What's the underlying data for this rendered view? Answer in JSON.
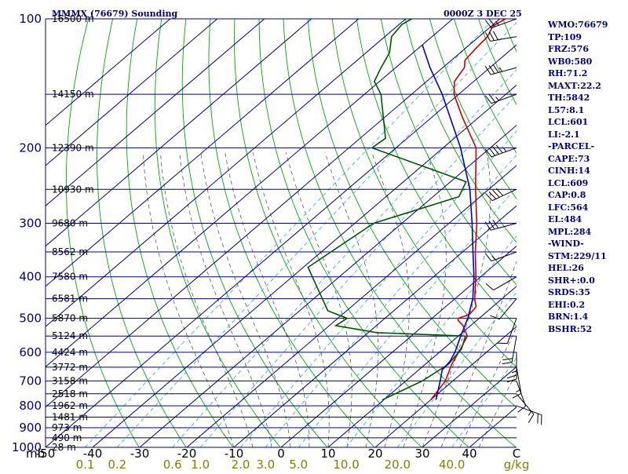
{
  "header": {
    "title": "MMMX (76679) Sounding",
    "time": "0000Z  3 DEC 25"
  },
  "colors": {
    "isobar": "#000080",
    "isotherm": "#000080",
    "dry_adiabat": "#00aa00",
    "moist_adiabat": "#444444",
    "mixing_ratio": "#44aadd",
    "temperature": "#cc0000",
    "dewpoint": "#005500",
    "parcel": "#0000cc",
    "wind": "#000000",
    "index_text": "#000080"
  },
  "chart_data": {
    "type": "line",
    "skew_t": true,
    "y_scale": "log-pressure",
    "pressure_range_mb": [
      1000,
      100
    ],
    "temp_range_c": [
      -50,
      50
    ],
    "pressure_label_unit": "mb",
    "pressure_labels": [
      100,
      200,
      300,
      400,
      500,
      600,
      700,
      800,
      900,
      1000
    ],
    "isobars": [
      100,
      150,
      200,
      250,
      300,
      350,
      400,
      450,
      500,
      550,
      600,
      650,
      700,
      750,
      800,
      850,
      900,
      950,
      1000
    ],
    "height_labels": [
      {
        "p": 100,
        "label": "16500 m"
      },
      {
        "p": 150,
        "label": "14150 m"
      },
      {
        "p": 200,
        "label": "12390 m"
      },
      {
        "p": 250,
        "label": "10930 m"
      },
      {
        "p": 300,
        "label": "9680 m"
      },
      {
        "p": 350,
        "label": "8562 m"
      },
      {
        "p": 400,
        "label": "7580 m"
      },
      {
        "p": 450,
        "label": "6581 m"
      },
      {
        "p": 500,
        "label": "5870 m"
      },
      {
        "p": 550,
        "label": "5124 m"
      },
      {
        "p": 600,
        "label": "4424 m"
      },
      {
        "p": 650,
        "label": "3772 m"
      },
      {
        "p": 700,
        "label": "3158 m"
      },
      {
        "p": 750,
        "label": "2518 m"
      },
      {
        "p": 800,
        "label": "1962 m"
      },
      {
        "p": 850,
        "label": "1481 m"
      },
      {
        "p": 900,
        "label": "973 m"
      },
      {
        "p": 950,
        "label": "490 m"
      },
      {
        "p": 1000,
        "label": "28 m"
      }
    ],
    "temp_ticks": [
      {
        "t": -50,
        "label": "-50"
      },
      {
        "t": -40,
        "label": "-40"
      },
      {
        "t": -30,
        "label": "-30"
      },
      {
        "t": -20,
        "label": "-20"
      },
      {
        "t": -10,
        "label": "-10"
      },
      {
        "t": 0,
        "label": "0"
      },
      {
        "t": 10,
        "label": "10"
      },
      {
        "t": 20,
        "label": "20"
      },
      {
        "t": 30,
        "label": "30"
      },
      {
        "t": 40,
        "label": "40"
      },
      {
        "t": 50,
        "label": "C"
      }
    ],
    "mixing_ratio_labels": [
      "0.1",
      "0.2",
      "0.6",
      "1.0",
      "2.0",
      "3.0",
      "5.0",
      "10.0",
      "20.0",
      "40.0",
      "g/kg"
    ],
    "temperature": [
      {
        "p": 775,
        "t": 20.0
      },
      {
        "p": 700,
        "t": 18.4
      },
      {
        "p": 640,
        "t": 15.6
      },
      {
        "p": 590,
        "t": 13.7
      },
      {
        "p": 550,
        "t": 11.9
      },
      {
        "p": 520,
        "t": 8.4
      },
      {
        "p": 505,
        "t": 6.0
      },
      {
        "p": 500,
        "t": 5.6
      },
      {
        "p": 490,
        "t": 7.0
      },
      {
        "p": 470,
        "t": 6.5
      },
      {
        "p": 450,
        "t": 4.2
      },
      {
        "p": 400,
        "t": -1.0
      },
      {
        "p": 350,
        "t": -7.3
      },
      {
        "p": 300,
        "t": -14.1
      },
      {
        "p": 250,
        "t": -22.8
      },
      {
        "p": 200,
        "t": -33.0
      },
      {
        "p": 170,
        "t": -43.4
      },
      {
        "p": 150,
        "t": -51.0
      },
      {
        "p": 140,
        "t": -54.1
      },
      {
        "p": 130,
        "t": -55.4
      },
      {
        "p": 125,
        "t": -57.1
      },
      {
        "p": 118,
        "t": -57.7
      },
      {
        "p": 110,
        "t": -58.2
      },
      {
        "p": 104,
        "t": -59.7
      },
      {
        "p": 100,
        "t": -58.8
      }
    ],
    "dewpoint": [
      {
        "p": 775,
        "t": 9.7
      },
      {
        "p": 700,
        "t": 13.5
      },
      {
        "p": 640,
        "t": 14.9
      },
      {
        "p": 590,
        "t": 13.9
      },
      {
        "p": 550,
        "t": 11.5
      },
      {
        "p": 540,
        "t": -8.1
      },
      {
        "p": 520,
        "t": -18.6
      },
      {
        "p": 500,
        "t": -18.0
      },
      {
        "p": 480,
        "t": -24.0
      },
      {
        "p": 380,
        "t": -39.0
      },
      {
        "p": 300,
        "t": -36.0
      },
      {
        "p": 260,
        "t": -24.5
      },
      {
        "p": 240,
        "t": -26.7
      },
      {
        "p": 200,
        "t": -55.1
      },
      {
        "p": 190,
        "t": -54.6
      },
      {
        "p": 150,
        "t": -66.5
      },
      {
        "p": 140,
        "t": -71.1
      },
      {
        "p": 130,
        "t": -73.1
      },
      {
        "p": 120,
        "t": -75.0
      },
      {
        "p": 110,
        "t": -78.6
      },
      {
        "p": 103,
        "t": -79.4
      },
      {
        "p": 100,
        "t": -78.7
      }
    ],
    "parcel": [
      {
        "p": 775,
        "t": 21.1
      },
      {
        "p": 700,
        "t": 17.3
      },
      {
        "p": 660,
        "t": 15.0
      },
      {
        "p": 630,
        "t": 14.5
      },
      {
        "p": 600,
        "t": 13.3
      },
      {
        "p": 550,
        "t": 10.5
      },
      {
        "p": 500,
        "t": 7.6
      },
      {
        "p": 450,
        "t": 3.8
      },
      {
        "p": 400,
        "t": -1.4
      },
      {
        "p": 350,
        "t": -7.8
      },
      {
        "p": 300,
        "t": -15.1
      },
      {
        "p": 250,
        "t": -24.0
      },
      {
        "p": 200,
        "t": -36.3
      },
      {
        "p": 150,
        "t": -53.5
      },
      {
        "p": 130,
        "t": -62.7
      },
      {
        "p": 115,
        "t": -70.0
      }
    ],
    "wind_barbs": [
      {
        "p": 100,
        "dir": 250,
        "kt": 25
      },
      {
        "p": 110,
        "dir": 260,
        "kt": 30
      },
      {
        "p": 130,
        "dir": 255,
        "kt": 35
      },
      {
        "p": 150,
        "dir": 250,
        "kt": 25
      },
      {
        "p": 200,
        "dir": 250,
        "kt": 45
      },
      {
        "p": 250,
        "dir": 245,
        "kt": 40
      },
      {
        "p": 300,
        "dir": 255,
        "kt": 30
      },
      {
        "p": 350,
        "dir": 250,
        "kt": 15
      },
      {
        "p": 400,
        "dir": 240,
        "kt": 10
      },
      {
        "p": 450,
        "dir": 220,
        "kt": 10
      },
      {
        "p": 500,
        "dir": 200,
        "kt": 10
      },
      {
        "p": 550,
        "dir": 190,
        "kt": 20
      },
      {
        "p": 600,
        "dir": 180,
        "kt": 25
      },
      {
        "p": 650,
        "dir": 170,
        "kt": 15
      },
      {
        "p": 700,
        "dir": 160,
        "kt": 10
      },
      {
        "p": 750,
        "dir": 140,
        "kt": 15
      },
      {
        "p": 800,
        "dir": 110,
        "kt": 20
      }
    ]
  },
  "indices": [
    "WMO:76679",
    "TP:109",
    "FRZ:576",
    "WB0:580",
    "RH:71.2",
    "MAXT:22.2",
    "TH:5842",
    "L57:8.1",
    "LCL:601",
    "LI:-2.1",
    "-PARCEL-",
    "CAPE:73",
    "CINH:14",
    "LCL:609",
    "CAP:0.8",
    "LFC:564",
    "EL:484",
    "MPL:284",
    "-WIND-",
    "STM:229/11",
    "HEL:26",
    "SHR+:0.0",
    "SRDS:35",
    "EHI:0.2",
    "BRN:1.4",
    "BSHR:52"
  ]
}
